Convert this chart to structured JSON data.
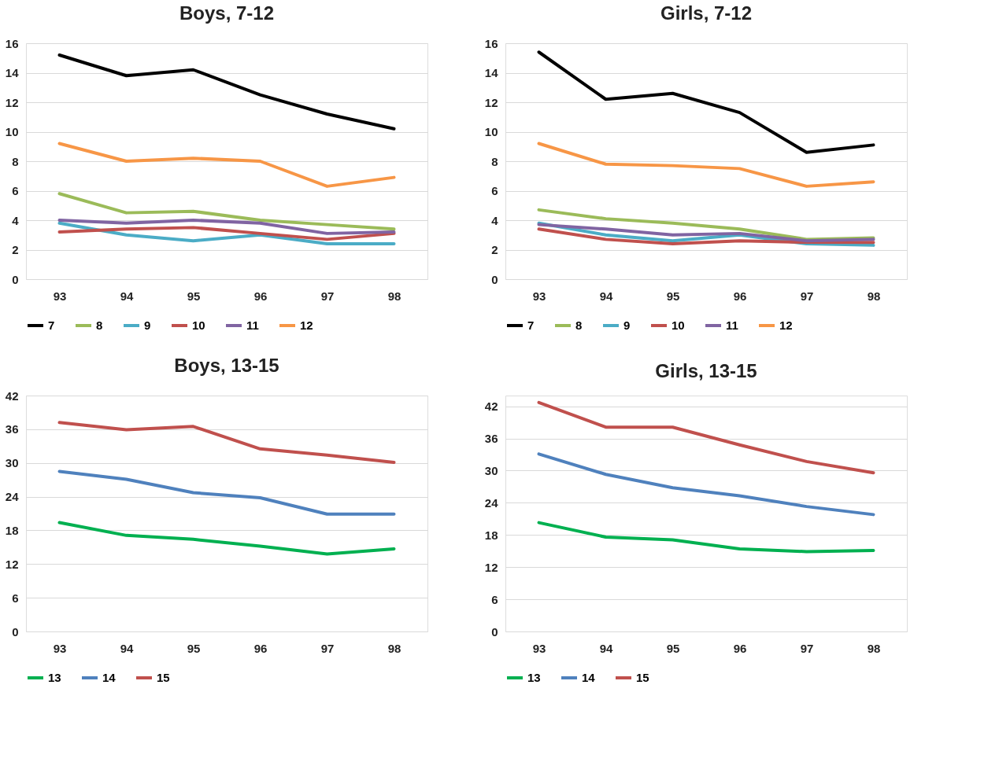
{
  "chart_data": [
    {
      "type": "line",
      "title": "Boys, 7-12",
      "categories": [
        "93",
        "94",
        "95",
        "96",
        "97",
        "98"
      ],
      "ylim": [
        0,
        16
      ],
      "yticks": [
        0,
        2,
        4,
        6,
        8,
        10,
        12,
        14,
        16
      ],
      "grid": "y",
      "legend": "bottom",
      "line_style": "solid",
      "marker": "none",
      "series": [
        {
          "name": "7",
          "color": "#000000",
          "values": [
            15.2,
            13.8,
            14.2,
            12.5,
            11.2,
            10.2
          ]
        },
        {
          "name": "8",
          "color": "#9bbb59",
          "values": [
            5.8,
            4.5,
            4.6,
            4.0,
            3.7,
            3.4
          ]
        },
        {
          "name": "9",
          "color": "#4bacc6",
          "values": [
            3.8,
            3.0,
            2.6,
            3.0,
            2.4,
            2.4
          ]
        },
        {
          "name": "10",
          "color": "#c0504d",
          "values": [
            3.2,
            3.4,
            3.5,
            3.1,
            2.7,
            3.1
          ]
        },
        {
          "name": "11",
          "color": "#8064a2",
          "values": [
            4.0,
            3.8,
            4.0,
            3.8,
            3.1,
            3.2
          ]
        },
        {
          "name": "12",
          "color": "#f79646",
          "values": [
            9.2,
            8.0,
            8.2,
            8.0,
            6.3,
            6.9
          ]
        }
      ]
    },
    {
      "type": "line",
      "title": "Girls, 7-12",
      "categories": [
        "93",
        "94",
        "95",
        "96",
        "97",
        "98"
      ],
      "ylim": [
        0,
        16
      ],
      "yticks": [
        0,
        2,
        4,
        6,
        8,
        10,
        12,
        14,
        16
      ],
      "grid": "y",
      "legend": "bottom",
      "line_style": "solid",
      "marker": "none",
      "series": [
        {
          "name": "7",
          "color": "#000000",
          "values": [
            15.4,
            12.2,
            12.6,
            11.3,
            8.6,
            9.1
          ]
        },
        {
          "name": "8",
          "color": "#9bbb59",
          "values": [
            4.7,
            4.1,
            3.8,
            3.4,
            2.7,
            2.8
          ]
        },
        {
          "name": "9",
          "color": "#4bacc6",
          "values": [
            3.8,
            3.0,
            2.6,
            3.0,
            2.4,
            2.3
          ]
        },
        {
          "name": "10",
          "color": "#c0504d",
          "values": [
            3.4,
            2.7,
            2.4,
            2.6,
            2.5,
            2.5
          ]
        },
        {
          "name": "11",
          "color": "#8064a2",
          "values": [
            3.7,
            3.4,
            3.0,
            3.1,
            2.6,
            2.7
          ]
        },
        {
          "name": "12",
          "color": "#f79646",
          "values": [
            9.2,
            7.8,
            7.7,
            7.5,
            6.3,
            6.6
          ]
        }
      ]
    },
    {
      "type": "line",
      "title": "Boys, 13-15",
      "categories": [
        "93",
        "94",
        "95",
        "96",
        "97",
        "98"
      ],
      "ylim": [
        0,
        42
      ],
      "yticks": [
        0,
        6,
        12,
        18,
        24,
        30,
        36,
        42
      ],
      "grid": "y",
      "legend": "bottom",
      "line_style": "solid",
      "marker": "none",
      "series": [
        {
          "name": "13",
          "color": "#00b050",
          "values": [
            19.4,
            17.1,
            16.4,
            15.2,
            13.8,
            14.7
          ]
        },
        {
          "name": "14",
          "color": "#4f81bd",
          "values": [
            28.5,
            27.1,
            24.7,
            23.8,
            20.9,
            20.9
          ]
        },
        {
          "name": "15",
          "color": "#c0504d",
          "values": [
            37.2,
            35.9,
            36.5,
            32.5,
            31.4,
            30.1
          ]
        }
      ]
    },
    {
      "type": "line",
      "title": "Girls, 13-15",
      "categories": [
        "93",
        "94",
        "95",
        "96",
        "97",
        "98"
      ],
      "ylim": [
        0,
        44
      ],
      "yticks": [
        0,
        6,
        12,
        18,
        24,
        30,
        36,
        42
      ],
      "grid": "y",
      "legend": "bottom",
      "line_style": "solid",
      "marker": "none",
      "series": [
        {
          "name": "13",
          "color": "#00b050",
          "values": [
            20.3,
            17.6,
            17.1,
            15.4,
            14.9,
            15.1
          ]
        },
        {
          "name": "14",
          "color": "#4f81bd",
          "values": [
            33.1,
            29.3,
            26.8,
            25.3,
            23.3,
            21.8
          ]
        },
        {
          "name": "15",
          "color": "#c0504d",
          "values": [
            42.7,
            38.1,
            38.1,
            34.8,
            31.7,
            29.6
          ]
        }
      ]
    }
  ]
}
